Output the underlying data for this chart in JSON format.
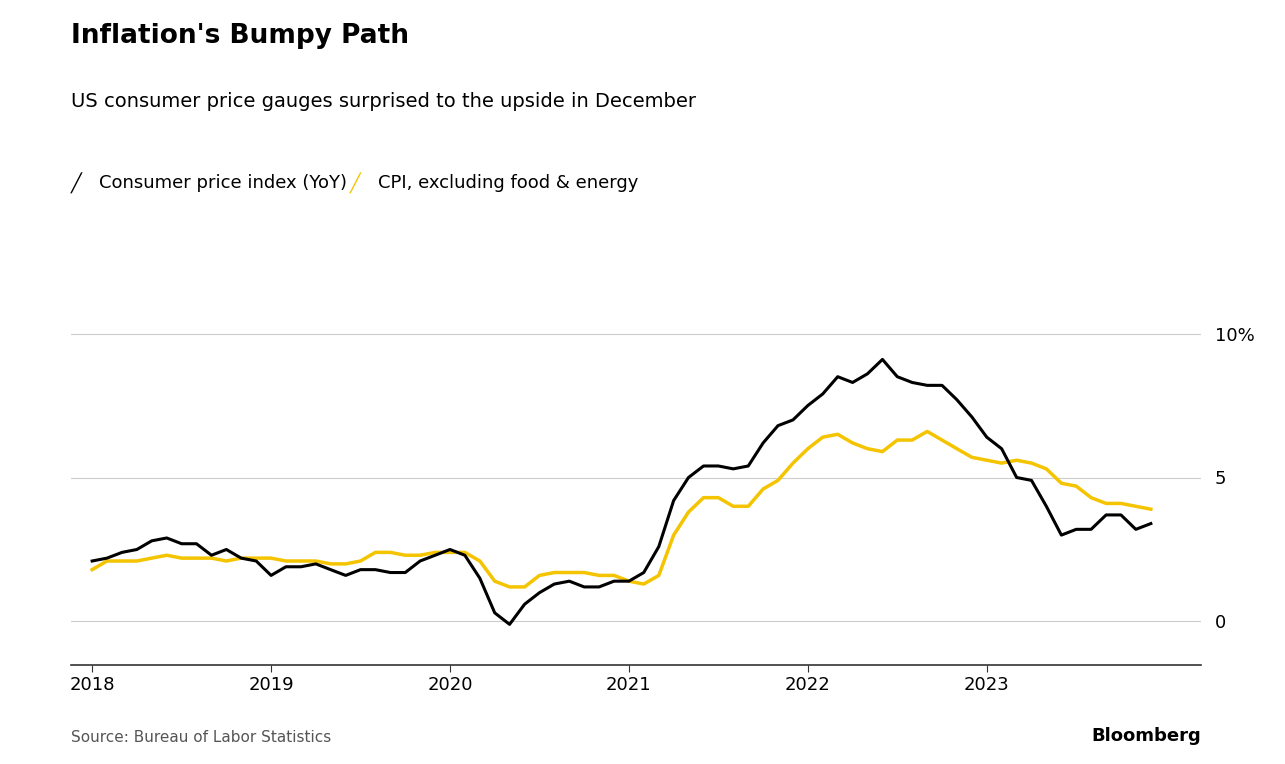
{
  "title": "Inflation's Bumpy Path",
  "subtitle": "US consumer price gauges surprised to the upside in December",
  "source": "Source: Bureau of Labor Statistics",
  "bloomberg": "Bloomberg",
  "legend": [
    "Consumer price index (YoY)",
    "CPI, excluding food & energy"
  ],
  "line_colors": [
    "#000000",
    "#F5C400"
  ],
  "background_color": "#ffffff",
  "yticks": [
    0,
    5,
    10
  ],
  "ylabel_suffix": "%",
  "ylim": [
    -1.5,
    11.5
  ],
  "cpi_yoy": [
    2.1,
    2.2,
    2.4,
    2.5,
    2.8,
    2.9,
    2.7,
    2.7,
    2.3,
    2.5,
    2.2,
    2.1,
    1.6,
    1.9,
    1.9,
    2.0,
    1.8,
    1.6,
    1.8,
    1.8,
    1.7,
    1.7,
    2.1,
    2.3,
    2.5,
    2.3,
    1.5,
    0.3,
    -0.1,
    0.6,
    1.0,
    1.3,
    1.4,
    1.2,
    1.2,
    1.4,
    1.4,
    1.7,
    2.6,
    4.2,
    5.0,
    5.4,
    5.4,
    5.3,
    5.4,
    6.2,
    6.8,
    7.0,
    7.5,
    7.9,
    8.5,
    8.3,
    8.6,
    9.1,
    8.5,
    8.3,
    8.2,
    8.2,
    7.7,
    7.1,
    6.4,
    6.0,
    5.0,
    4.9,
    4.0,
    3.0,
    3.2,
    3.2,
    3.7,
    3.7,
    3.2,
    3.4
  ],
  "cpi_core": [
    1.8,
    2.1,
    2.1,
    2.1,
    2.2,
    2.3,
    2.2,
    2.2,
    2.2,
    2.1,
    2.2,
    2.2,
    2.2,
    2.1,
    2.1,
    2.1,
    2.0,
    2.0,
    2.1,
    2.4,
    2.4,
    2.3,
    2.3,
    2.4,
    2.4,
    2.4,
    2.1,
    1.4,
    1.2,
    1.2,
    1.6,
    1.7,
    1.7,
    1.7,
    1.6,
    1.6,
    1.4,
    1.3,
    1.6,
    3.0,
    3.8,
    4.3,
    4.3,
    4.0,
    4.0,
    4.6,
    4.9,
    5.5,
    6.0,
    6.4,
    6.5,
    6.2,
    6.0,
    5.9,
    6.3,
    6.3,
    6.6,
    6.3,
    6.0,
    5.7,
    5.6,
    5.5,
    5.6,
    5.5,
    5.3,
    4.8,
    4.7,
    4.3,
    4.1,
    4.1,
    4.0,
    3.9
  ],
  "dates_decimal": [
    2018.0,
    2018.083,
    2018.167,
    2018.25,
    2018.333,
    2018.417,
    2018.5,
    2018.583,
    2018.667,
    2018.75,
    2018.833,
    2018.917,
    2019.0,
    2019.083,
    2019.167,
    2019.25,
    2019.333,
    2019.417,
    2019.5,
    2019.583,
    2019.667,
    2019.75,
    2019.833,
    2019.917,
    2020.0,
    2020.083,
    2020.167,
    2020.25,
    2020.333,
    2020.417,
    2020.5,
    2020.583,
    2020.667,
    2020.75,
    2020.833,
    2020.917,
    2021.0,
    2021.083,
    2021.167,
    2021.25,
    2021.333,
    2021.417,
    2021.5,
    2021.583,
    2021.667,
    2021.75,
    2021.833,
    2021.917,
    2022.0,
    2022.083,
    2022.167,
    2022.25,
    2022.333,
    2022.417,
    2022.5,
    2022.583,
    2022.667,
    2022.75,
    2022.833,
    2022.917,
    2023.0,
    2023.083,
    2023.167,
    2023.25,
    2023.333,
    2023.417,
    2023.5,
    2023.583,
    2023.667,
    2023.75,
    2023.833,
    2023.917
  ],
  "xtick_positions": [
    2018,
    2019,
    2020,
    2021,
    2022,
    2023
  ],
  "xtick_labels": [
    "2018",
    "2019",
    "2020",
    "2021",
    "2022",
    "2023"
  ]
}
